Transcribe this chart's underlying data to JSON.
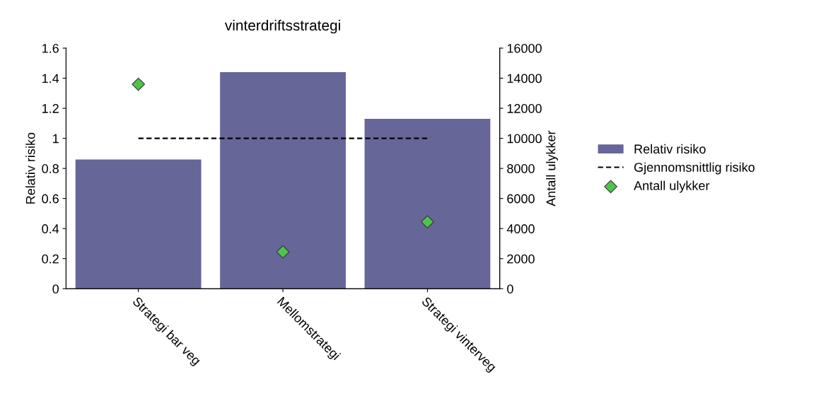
{
  "chart_data": {
    "type": "bar",
    "title": "vinterdriftsstrategi",
    "ylabel": "Relativ risiko",
    "y2label": "Antall ulykker",
    "categories": [
      "Strategi bar veg",
      "Mellomstrategi",
      "Strategi vinterveg"
    ],
    "series": [
      {
        "name": "Relativ risiko",
        "color": "#666699",
        "values": [
          0.86,
          1.44,
          1.13
        ]
      },
      {
        "name": "Gjennomsnittlig risiko",
        "type": "line",
        "color": "#000000",
        "line_style": "dashed",
        "marker": "none",
        "values": [
          1,
          1,
          1
        ]
      },
      {
        "name": "Antall ulykker",
        "type": "scatter",
        "color": "#4dc44d",
        "marker": "diamond",
        "axis": "y2",
        "values": [
          13600,
          2450,
          4450
        ]
      }
    ],
    "ylim": [
      0,
      1.6
    ],
    "yticks": [
      0,
      0.2,
      0.4,
      0.6,
      0.8,
      1,
      1.2,
      1.4,
      1.6
    ],
    "y2lim": [
      0,
      16000
    ],
    "y2ticks": [
      0,
      2000,
      4000,
      6000,
      8000,
      10000,
      12000,
      14000,
      16000
    ],
    "grid": false,
    "legend": "right"
  }
}
